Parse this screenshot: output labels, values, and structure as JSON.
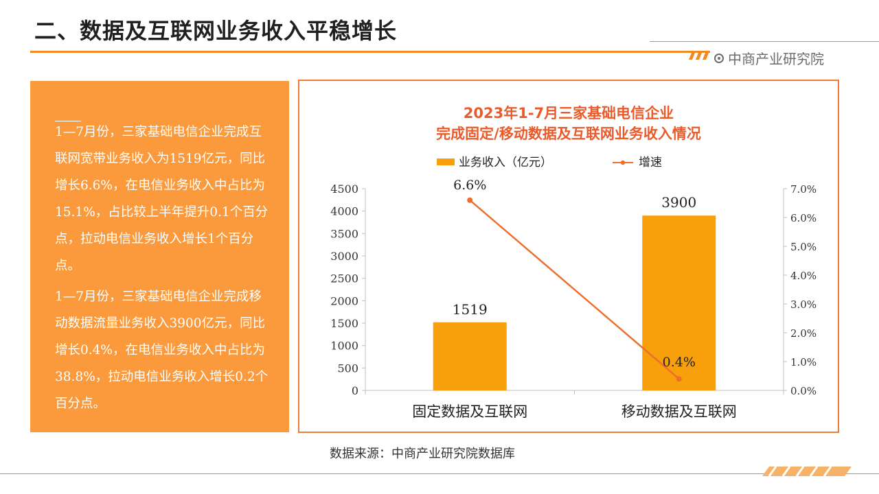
{
  "header": {
    "title": "二、数据及互联网业务收入平稳增长",
    "brand": "中商产业研究院"
  },
  "text_panel": {
    "paragraphs": [
      "1—7月份，三家基础电信企业完成互联网宽带业务收入为1519亿元，同比增长6.6%，在电信业务收入中占比为15.1%，占比较上半年提升0.1个百分点，拉动电信业务收入增长1个百分点。",
      "1—7月份，三家基础电信企业完成移动数据流量业务收入3900亿元，同比增长0.4%，在电信业务收入中占比为38.8%，拉动电信业务收入增长0.2个百分点。"
    ]
  },
  "source": "数据来源：中商产业研究院数据库",
  "colors": {
    "accent": "#f28a24",
    "panel": "#fb9a3c",
    "bar": "#f7a00c",
    "line": "#ed6f2a",
    "title_red": "#ea5a2a"
  },
  "chart_data": {
    "type": "bar",
    "title_lines": [
      "2023年1-7月三家基础电信企业",
      "完成固定/移动数据及互联网业务收入情况"
    ],
    "categories": [
      "固定数据及互联网",
      "移动数据及互联网"
    ],
    "series": [
      {
        "name": "业务收入（亿元）",
        "type": "bar",
        "axis": "left",
        "values": [
          1519,
          3900
        ],
        "labels": [
          "1519",
          "3900"
        ]
      },
      {
        "name": "增速",
        "type": "line",
        "axis": "right",
        "values": [
          6.6,
          0.4
        ],
        "labels": [
          "6.6%",
          "0.4%"
        ]
      }
    ],
    "y_left": {
      "min": 0,
      "max": 4500,
      "ticks": [
        "0",
        "500",
        "1000",
        "1500",
        "2000",
        "2500",
        "3000",
        "3500",
        "4000",
        "4500"
      ]
    },
    "y_right": {
      "min": 0,
      "max": 7,
      "ticks": [
        "0.0%",
        "1.0%",
        "2.0%",
        "3.0%",
        "4.0%",
        "5.0%",
        "6.0%",
        "7.0%"
      ]
    },
    "legend": "top",
    "grid": false
  }
}
